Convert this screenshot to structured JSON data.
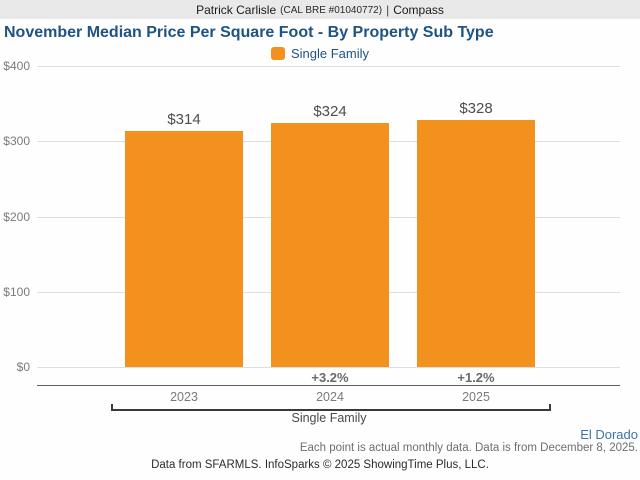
{
  "header": {
    "agent": "Patrick Carlisle",
    "license": "(CAL BRE #01040772)",
    "separator": "|",
    "brand": "Compass"
  },
  "title": "November Median Price Per Square Foot - By Property Sub Type",
  "legend": {
    "label": "Single Family",
    "color": "#f2911d"
  },
  "chart_data": {
    "type": "bar",
    "title": "November Median Price Per Square Foot - By Property Sub Type",
    "categories": [
      "2023",
      "2024",
      "2025"
    ],
    "series": [
      {
        "name": "Single Family",
        "color": "#f2911d",
        "values": [
          314,
          324,
          328
        ]
      }
    ],
    "bar_labels": [
      "$314",
      "$324",
      "$328"
    ],
    "pct_change_labels": [
      "",
      "+3.2%",
      "+1.2%"
    ],
    "y_ticks": [
      "$400",
      "$300",
      "$200",
      "$100",
      "$0"
    ],
    "ylim": [
      0,
      400
    ],
    "grid": true,
    "legend_position": "top-center",
    "group_label": "Single Family"
  },
  "footer": {
    "region": "El Dorado",
    "note": "Each point is actual monthly data. Data is from December 8, 2025.",
    "attribution": "Data from SFARMLS. InfoSparks © 2025 ShowingTime Plus, LLC."
  },
  "colors": {
    "bar": "#f2911d",
    "title_text": "#1e5382",
    "header_bg": "#e9e9e9",
    "region_link": "#3b74a8"
  }
}
